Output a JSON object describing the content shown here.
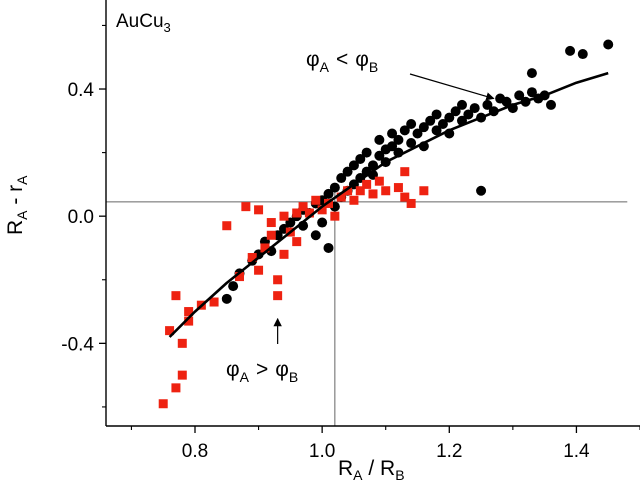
{
  "chart_data": {
    "type": "scatter",
    "title": "AuCu",
    "title_sub": "3",
    "xlabel": {
      "main1": "R",
      "sub1": "A",
      "sep": " / ",
      "main2": "R",
      "sub2": "B"
    },
    "ylabel": {
      "main1": "R",
      "sub1": "A",
      "sep": " - ",
      "main2": "r",
      "sub2": "A"
    },
    "xlim": [
      0.66,
      1.5
    ],
    "ylim": [
      -0.66,
      0.68
    ],
    "x_ticks": [
      0.8,
      1.0,
      1.2,
      1.4
    ],
    "x_tick_labels": [
      "0.8",
      "1.0",
      "1.2",
      "1.4"
    ],
    "y_ticks": [
      -0.4,
      0.0,
      0.4
    ],
    "y_tick_labels": [
      "-0.4",
      "0.0",
      "0.4"
    ],
    "grid": false,
    "reference_lines": {
      "horizontal_y": 0.045,
      "vertical_x": 1.02
    },
    "annotations": [
      {
        "phi1": "φ",
        "sub1": "A",
        "op": "<",
        "phi2": "φ",
        "sub2": "B",
        "arrow_to": [
          1.27,
          0.37
        ]
      },
      {
        "phi1": "φ",
        "sub1": "A",
        "op": ">",
        "phi2": "φ",
        "sub2": "B",
        "arrow_to": [
          0.93,
          -0.31
        ]
      }
    ],
    "series": [
      {
        "marker": "circle",
        "color": "#000000",
        "points": [
          [
            0.85,
            -0.26
          ],
          [
            0.86,
            -0.22
          ],
          [
            0.87,
            -0.18
          ],
          [
            0.89,
            -0.14
          ],
          [
            0.9,
            -0.12
          ],
          [
            0.91,
            -0.08
          ],
          [
            0.92,
            -0.11
          ],
          [
            0.93,
            -0.06
          ],
          [
            0.94,
            -0.04
          ],
          [
            0.95,
            -0.02
          ],
          [
            0.96,
            0.0
          ],
          [
            0.97,
            -0.03
          ],
          [
            0.97,
            0.02
          ],
          [
            0.98,
            0.01
          ],
          [
            0.99,
            -0.06
          ],
          [
            0.99,
            0.04
          ],
          [
            1.0,
            -0.02
          ],
          [
            1.0,
            0.05
          ],
          [
            1.01,
            -0.1
          ],
          [
            1.01,
            0.07
          ],
          [
            1.02,
            0.03
          ],
          [
            1.02,
            0.09
          ],
          [
            1.03,
            0.06
          ],
          [
            1.03,
            0.12
          ],
          [
            1.04,
            0.08
          ],
          [
            1.04,
            0.14
          ],
          [
            1.05,
            0.1
          ],
          [
            1.05,
            0.16
          ],
          [
            1.06,
            0.12
          ],
          [
            1.06,
            0.18
          ],
          [
            1.07,
            0.14
          ],
          [
            1.07,
            0.2
          ],
          [
            1.08,
            0.16
          ],
          [
            1.08,
            0.13
          ],
          [
            1.09,
            0.19
          ],
          [
            1.09,
            0.24
          ],
          [
            1.1,
            0.17
          ],
          [
            1.1,
            0.21
          ],
          [
            1.11,
            0.22
          ],
          [
            1.11,
            0.26
          ],
          [
            1.12,
            0.24
          ],
          [
            1.12,
            0.2
          ],
          [
            1.13,
            0.27
          ],
          [
            1.14,
            0.23
          ],
          [
            1.14,
            0.29
          ],
          [
            1.15,
            0.26
          ],
          [
            1.16,
            0.28
          ],
          [
            1.16,
            0.22
          ],
          [
            1.17,
            0.3
          ],
          [
            1.18,
            0.27
          ],
          [
            1.18,
            0.32
          ],
          [
            1.19,
            0.29
          ],
          [
            1.2,
            0.31
          ],
          [
            1.2,
            0.26
          ],
          [
            1.21,
            0.33
          ],
          [
            1.22,
            0.3
          ],
          [
            1.22,
            0.35
          ],
          [
            1.23,
            0.32
          ],
          [
            1.24,
            0.34
          ],
          [
            1.25,
            0.08
          ],
          [
            1.25,
            0.31
          ],
          [
            1.26,
            0.35
          ],
          [
            1.27,
            0.33
          ],
          [
            1.28,
            0.37
          ],
          [
            1.29,
            0.36
          ],
          [
            1.3,
            0.34
          ],
          [
            1.31,
            0.38
          ],
          [
            1.32,
            0.36
          ],
          [
            1.33,
            0.39
          ],
          [
            1.34,
            0.37
          ],
          [
            1.35,
            0.38
          ],
          [
            1.36,
            0.35
          ],
          [
            1.33,
            0.45
          ],
          [
            1.39,
            0.52
          ],
          [
            1.41,
            0.51
          ],
          [
            1.45,
            0.54
          ]
        ]
      },
      {
        "marker": "square",
        "color": "#ee2211",
        "points": [
          [
            0.75,
            -0.59
          ],
          [
            0.76,
            -0.36
          ],
          [
            0.77,
            -0.54
          ],
          [
            0.77,
            -0.25
          ],
          [
            0.78,
            -0.5
          ],
          [
            0.78,
            -0.4
          ],
          [
            0.79,
            -0.33
          ],
          [
            0.79,
            -0.3
          ],
          [
            0.81,
            -0.28
          ],
          [
            0.83,
            -0.27
          ],
          [
            0.85,
            -0.03
          ],
          [
            0.87,
            -0.19
          ],
          [
            0.88,
            0.03
          ],
          [
            0.89,
            -0.13
          ],
          [
            0.9,
            -0.17
          ],
          [
            0.9,
            0.02
          ],
          [
            0.91,
            -0.1
          ],
          [
            0.92,
            -0.06
          ],
          [
            0.92,
            -0.02
          ],
          [
            0.93,
            -0.2
          ],
          [
            0.93,
            -0.25
          ],
          [
            0.94,
            -0.12
          ],
          [
            0.94,
            0.0
          ],
          [
            0.95,
            -0.05
          ],
          [
            0.96,
            0.01
          ],
          [
            0.96,
            -0.08
          ],
          [
            0.97,
            0.03
          ],
          [
            0.98,
            0.01
          ],
          [
            0.99,
            0.05
          ],
          [
            1.0,
            0.02
          ],
          [
            1.01,
            0.04
          ],
          [
            1.02,
            0.0
          ],
          [
            1.03,
            0.06
          ],
          [
            1.04,
            0.08
          ],
          [
            1.05,
            0.05
          ],
          [
            1.06,
            0.08
          ],
          [
            1.07,
            0.1
          ],
          [
            1.08,
            0.07
          ],
          [
            1.09,
            0.11
          ],
          [
            1.1,
            0.08
          ],
          [
            1.12,
            0.09
          ],
          [
            1.13,
            0.06
          ],
          [
            1.13,
            0.14
          ],
          [
            1.14,
            0.04
          ],
          [
            1.16,
            0.08
          ]
        ]
      }
    ],
    "fit_line": [
      [
        0.76,
        -0.38
      ],
      [
        0.8,
        -0.3
      ],
      [
        0.85,
        -0.21
      ],
      [
        0.9,
        -0.13
      ],
      [
        0.95,
        -0.05
      ],
      [
        1.0,
        0.03
      ],
      [
        1.05,
        0.1
      ],
      [
        1.1,
        0.17
      ],
      [
        1.15,
        0.22
      ],
      [
        1.2,
        0.27
      ],
      [
        1.25,
        0.31
      ],
      [
        1.3,
        0.35
      ],
      [
        1.35,
        0.38
      ],
      [
        1.4,
        0.42
      ],
      [
        1.45,
        0.45
      ]
    ]
  }
}
